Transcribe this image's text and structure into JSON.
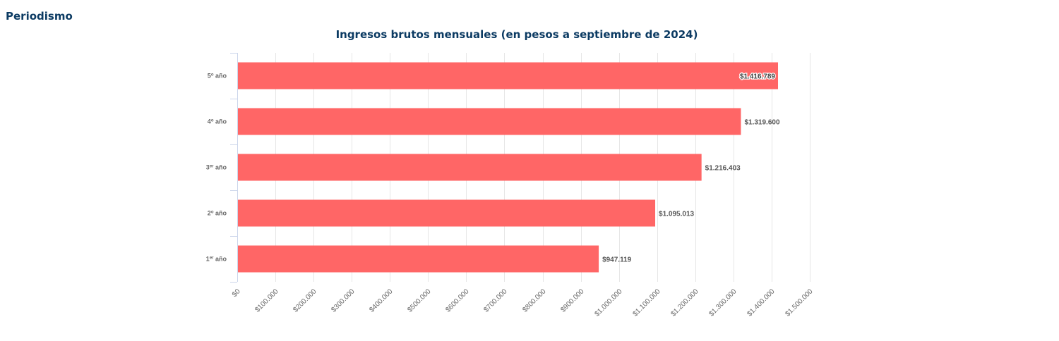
{
  "page": {
    "heading": "Periodismo"
  },
  "chart_data": {
    "type": "bar",
    "orientation": "horizontal",
    "title": "Ingresos brutos mensuales (en pesos a septiembre de 2024)",
    "categories": [
      {
        "base": "5",
        "sup": "o",
        "suffix": " año"
      },
      {
        "base": "4",
        "sup": "o",
        "suffix": " año"
      },
      {
        "base": "3",
        "sup": "er",
        "suffix": " año"
      },
      {
        "base": "2",
        "sup": "o",
        "suffix": " año"
      },
      {
        "base": "1",
        "sup": "er",
        "suffix": " año"
      }
    ],
    "values": [
      1416789,
      1319600,
      1216403,
      1095013,
      947119
    ],
    "value_labels": [
      "$1.416.789",
      "$1.319.600",
      "$1.216.403",
      "$1.095.013",
      "$947.119"
    ],
    "xlim": [
      0,
      1500000
    ],
    "ticks": [
      0,
      100000,
      200000,
      300000,
      400000,
      500000,
      600000,
      700000,
      800000,
      900000,
      1000000,
      1100000,
      1200000,
      1300000,
      1400000,
      1500000
    ],
    "tick_labels": [
      "$0",
      "$100.000",
      "$200.000",
      "$300.000",
      "$400.000",
      "$500.000",
      "$600.000",
      "$700.000",
      "$800.000",
      "$900.000",
      "$1.000.000",
      "$1.100.000",
      "$1.200.000",
      "$1.300.000",
      "$1.400.000",
      "$1.500.000"
    ],
    "grid": true,
    "legend": "none",
    "colors": {
      "bar": "#ff6666",
      "title": "#0c3b63"
    }
  }
}
